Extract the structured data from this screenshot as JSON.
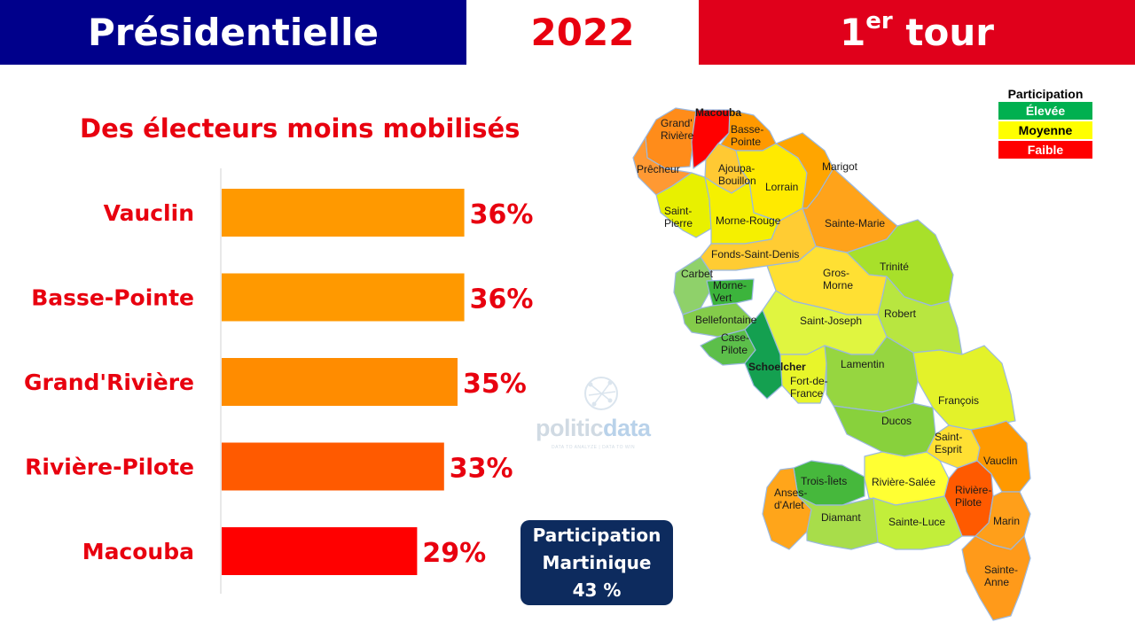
{
  "header": {
    "title": "Présidentielle",
    "year": "2022",
    "round_main": "1",
    "round_sup": "er",
    "round_word": "tour"
  },
  "subtitle": "Des électeurs moins mobilisés",
  "chart_data": {
    "type": "bar",
    "orientation": "horizontal",
    "title": "Des électeurs moins mobilisés",
    "categories": [
      "Vauclin",
      "Basse-Pointe",
      "Grand'Rivière",
      "Rivière-Pilote",
      "Macouba"
    ],
    "values": [
      36,
      36,
      35,
      33,
      29
    ],
    "value_labels": [
      "36%",
      "36%",
      "35%",
      "33%",
      "29%"
    ],
    "bar_colors": [
      "#ff9900",
      "#ff9900",
      "#ff8c00",
      "#ff5a00",
      "#ff0000"
    ],
    "xlim": [
      0,
      50
    ],
    "grid": false,
    "legend": "none"
  },
  "map": {
    "communes": [
      {
        "name": "Grand'\nRivière",
        "color": "#ff8c1a"
      },
      {
        "name": "Macouba",
        "color": "#ff0000"
      },
      {
        "name": "Basse-\nPointe",
        "color": "#ff9900"
      },
      {
        "name": "Prêcheur",
        "color": "#ff9933"
      },
      {
        "name": "Ajoupa-\nBouillon",
        "color": "#ffc933"
      },
      {
        "name": "Lorrain",
        "color": "#ffea00"
      },
      {
        "name": "Marigot",
        "color": "#ffa500"
      },
      {
        "name": "Saint-\nPierre",
        "color": "#e8f000"
      },
      {
        "name": "Morne-Rouge",
        "color": "#f5f000"
      },
      {
        "name": "Sainte-Marie",
        "color": "#ffa31a"
      },
      {
        "name": "Fonds-Saint-Denis",
        "color": "#ffcc33"
      },
      {
        "name": "Trinité",
        "color": "#a8e02a"
      },
      {
        "name": "Carbet",
        "color": "#8fd16a"
      },
      {
        "name": "Morne-\nVert",
        "color": "#3cb43c"
      },
      {
        "name": "Gros-\nMorne",
        "color": "#ffe033"
      },
      {
        "name": "Bellefontaine",
        "color": "#84cc4a"
      },
      {
        "name": "Saint-Joseph",
        "color": "#e0f540"
      },
      {
        "name": "Robert",
        "color": "#b8e640"
      },
      {
        "name": "Case-\nPilote",
        "color": "#5cbf4a"
      },
      {
        "name": "Schoelcher",
        "color": "#14a050"
      },
      {
        "name": "Fort-de-\nFrance",
        "color": "#e8f52a"
      },
      {
        "name": "Lamentin",
        "color": "#96d640"
      },
      {
        "name": "François",
        "color": "#e3f22a"
      },
      {
        "name": "Ducos",
        "color": "#88d13c"
      },
      {
        "name": "Saint-\nEsprit",
        "color": "#ffe033"
      },
      {
        "name": "Vauclin",
        "color": "#ff9900"
      },
      {
        "name": "Trois-Îlets",
        "color": "#46b83c"
      },
      {
        "name": "Rivière-Salée",
        "color": "#ffff33"
      },
      {
        "name": "Anses-\nd'Arlet",
        "color": "#ffa51a"
      },
      {
        "name": "Rivière-\nPilote",
        "color": "#ff5a00"
      },
      {
        "name": "Diamant",
        "color": "#a8dd4a"
      },
      {
        "name": "Sainte-Luce",
        "color": "#c2ee3a"
      },
      {
        "name": "Marin",
        "color": "#ff9f1a"
      },
      {
        "name": "Sainte-\nAnne",
        "color": "#ff9a1a"
      }
    ]
  },
  "legend": {
    "title": "Participation",
    "items": [
      {
        "label": "Élevée",
        "bg": "#00b050",
        "fg": "#ffffff"
      },
      {
        "label": "Moyenne",
        "bg": "#ffff00",
        "fg": "#000000"
      },
      {
        "label": "Faible",
        "bg": "#ff0000",
        "fg": "#ffffff"
      }
    ]
  },
  "watermark": {
    "name_a": "politic",
    "name_b": "data",
    "tagline": "DATA TO ANALYZE | DATA TO WIN"
  },
  "participation_box": {
    "line1": "Participation",
    "line2": "Martinique",
    "line3": "43 %"
  }
}
